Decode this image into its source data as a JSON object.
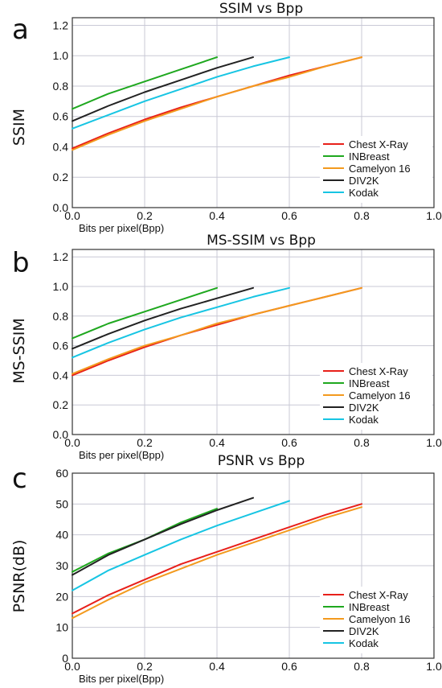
{
  "colors": {
    "chest_xray": "#e8201a",
    "inbreast": "#1fa81f",
    "camelyon16": "#f39a1e",
    "div2k": "#222222",
    "kodak": "#17c5e3"
  },
  "chart_data": [
    {
      "type": "line",
      "panel_label": "a",
      "title": "SSIM vs Bpp",
      "xlabel": "Bits per pixel(Bpp)",
      "ylabel": "SSIM",
      "xlim": [
        0.0,
        1.0
      ],
      "ylim": [
        0.0,
        1.25
      ],
      "xticks": [
        "0.0",
        "0.2",
        "0.4",
        "0.6",
        "0.8",
        "1.0"
      ],
      "yticks": [
        "0.0",
        "0.2",
        "0.4",
        "0.6",
        "0.8",
        "1.0",
        "1.2"
      ],
      "grid": true,
      "legend_position": "bottom-right",
      "series": [
        {
          "name": "Chest X-Ray",
          "color_key": "chest_xray",
          "x": [
            0.0,
            0.1,
            0.2,
            0.3,
            0.4,
            0.5,
            0.6,
            0.7,
            0.8
          ],
          "y": [
            0.39,
            0.49,
            0.58,
            0.66,
            0.73,
            0.8,
            0.87,
            0.93,
            0.99
          ]
        },
        {
          "name": "INBreast",
          "color_key": "inbreast",
          "x": [
            0.0,
            0.1,
            0.2,
            0.3,
            0.4
          ],
          "y": [
            0.65,
            0.75,
            0.83,
            0.91,
            0.99
          ]
        },
        {
          "name": "Camelyon 16",
          "color_key": "camelyon16",
          "x": [
            0.0,
            0.1,
            0.2,
            0.3,
            0.4,
            0.5,
            0.6,
            0.7,
            0.8
          ],
          "y": [
            0.38,
            0.48,
            0.57,
            0.65,
            0.73,
            0.8,
            0.86,
            0.93,
            0.99
          ]
        },
        {
          "name": "DIV2K",
          "color_key": "div2k",
          "x": [
            0.0,
            0.1,
            0.2,
            0.3,
            0.4,
            0.5
          ],
          "y": [
            0.57,
            0.67,
            0.76,
            0.84,
            0.92,
            0.99
          ]
        },
        {
          "name": "Kodak",
          "color_key": "kodak",
          "x": [
            0.0,
            0.1,
            0.2,
            0.3,
            0.4,
            0.5,
            0.6
          ],
          "y": [
            0.52,
            0.61,
            0.7,
            0.78,
            0.86,
            0.93,
            0.99
          ]
        }
      ]
    },
    {
      "type": "line",
      "panel_label": "b",
      "title": "MS-SSIM vs Bpp",
      "xlabel": "Bits per pixel(Bpp)",
      "ylabel": "MS-SSIM",
      "xlim": [
        0.0,
        1.0
      ],
      "ylim": [
        0.0,
        1.25
      ],
      "xticks": [
        "0.0",
        "0.2",
        "0.4",
        "0.6",
        "0.8",
        "1.0"
      ],
      "yticks": [
        "0.0",
        "0.2",
        "0.4",
        "0.6",
        "0.8",
        "1.0",
        "1.2"
      ],
      "grid": true,
      "legend_position": "bottom-right",
      "series": [
        {
          "name": "Chest X-Ray",
          "color_key": "chest_xray",
          "x": [
            0.0,
            0.1,
            0.2,
            0.3,
            0.4,
            0.5,
            0.6,
            0.7,
            0.8
          ],
          "y": [
            0.4,
            0.5,
            0.59,
            0.67,
            0.74,
            0.81,
            0.87,
            0.93,
            0.99
          ]
        },
        {
          "name": "INBreast",
          "color_key": "inbreast",
          "x": [
            0.0,
            0.1,
            0.2,
            0.3,
            0.4
          ],
          "y": [
            0.65,
            0.75,
            0.83,
            0.91,
            0.99
          ]
        },
        {
          "name": "Camelyon 16",
          "color_key": "camelyon16",
          "x": [
            0.0,
            0.1,
            0.2,
            0.3,
            0.4,
            0.5,
            0.6,
            0.7,
            0.8
          ],
          "y": [
            0.41,
            0.51,
            0.6,
            0.67,
            0.75,
            0.81,
            0.87,
            0.93,
            0.99
          ]
        },
        {
          "name": "DIV2K",
          "color_key": "div2k",
          "x": [
            0.0,
            0.1,
            0.2,
            0.3,
            0.4,
            0.5
          ],
          "y": [
            0.58,
            0.68,
            0.77,
            0.85,
            0.92,
            0.99
          ]
        },
        {
          "name": "Kodak",
          "color_key": "kodak",
          "x": [
            0.0,
            0.1,
            0.2,
            0.3,
            0.4,
            0.5,
            0.6
          ],
          "y": [
            0.52,
            0.62,
            0.71,
            0.79,
            0.86,
            0.93,
            0.99
          ]
        }
      ]
    },
    {
      "type": "line",
      "panel_label": "c",
      "title": "PSNR vs Bpp",
      "xlabel": "Bits per pixel(Bpp)",
      "ylabel": "PSNR(dB)",
      "xlim": [
        0.0,
        1.0
      ],
      "ylim": [
        0,
        60
      ],
      "xticks": [
        "0.0",
        "0.2",
        "0.4",
        "0.6",
        "0.8",
        "1.0"
      ],
      "yticks": [
        "0",
        "10",
        "20",
        "30",
        "40",
        "50",
        "60"
      ],
      "grid": true,
      "legend_position": "bottom-right",
      "series": [
        {
          "name": "Chest X-Ray",
          "color_key": "chest_xray",
          "x": [
            0.0,
            0.1,
            0.2,
            0.3,
            0.4,
            0.5,
            0.6,
            0.7,
            0.8
          ],
          "y": [
            14.5,
            20.5,
            25.5,
            30.5,
            34.5,
            38.5,
            42.5,
            46.5,
            50.0
          ]
        },
        {
          "name": "INBreast",
          "color_key": "inbreast",
          "x": [
            0.0,
            0.1,
            0.2,
            0.3,
            0.4
          ],
          "y": [
            28.0,
            34.0,
            38.5,
            44.0,
            48.5
          ]
        },
        {
          "name": "Camelyon 16",
          "color_key": "camelyon16",
          "x": [
            0.0,
            0.1,
            0.2,
            0.3,
            0.4,
            0.5,
            0.6,
            0.7,
            0.8
          ],
          "y": [
            13.0,
            19.0,
            24.5,
            29.0,
            33.5,
            37.5,
            41.5,
            45.5,
            49.0
          ]
        },
        {
          "name": "DIV2K",
          "color_key": "div2k",
          "x": [
            0.0,
            0.1,
            0.2,
            0.3,
            0.4,
            0.5
          ],
          "y": [
            27.0,
            33.5,
            38.5,
            43.5,
            48.0,
            52.0
          ]
        },
        {
          "name": "Kodak",
          "color_key": "kodak",
          "x": [
            0.0,
            0.1,
            0.2,
            0.3,
            0.4,
            0.5,
            0.6
          ],
          "y": [
            22.0,
            28.5,
            33.5,
            38.5,
            43.0,
            47.0,
            51.0
          ]
        }
      ]
    }
  ]
}
